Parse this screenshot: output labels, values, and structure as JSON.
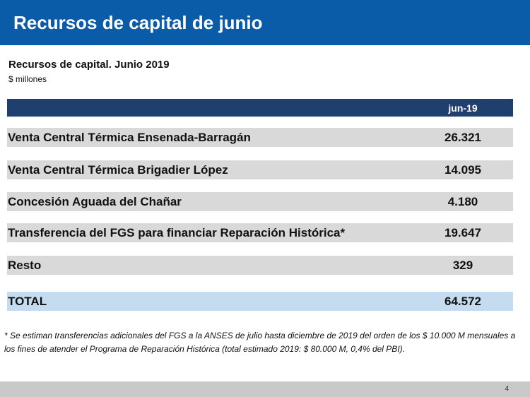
{
  "header": {
    "title": "Recursos de capital de junio"
  },
  "table": {
    "title": "Recursos de capital. Junio 2019",
    "units": "$ millones",
    "column_header": "jun-19",
    "rows": [
      {
        "label": "Venta Central Térmica Ensenada-Barragán",
        "value": "26.321"
      },
      {
        "label": "Venta Central Térmica Brigadier López",
        "value": "14.095"
      },
      {
        "label": "Concesión Aguada del Chañar",
        "value": "4.180"
      },
      {
        "label": "Transferencia del FGS para financiar Reparación Histórica*",
        "value": "19.647"
      },
      {
        "label": "Resto",
        "value": "329"
      }
    ],
    "total": {
      "label": "TOTAL",
      "value": "64.572"
    }
  },
  "footnote": "* Se estiman transferencias adicionales del FGS a la ANSES de julio hasta diciembre de 2019 del orden de los $ 10.000 M mensuales a los fines de atender el Programa de Reparación Histórica (total estimado 2019: $ 80.000 M, 0,4% del PBI).",
  "footer": {
    "page_number": "4"
  }
}
